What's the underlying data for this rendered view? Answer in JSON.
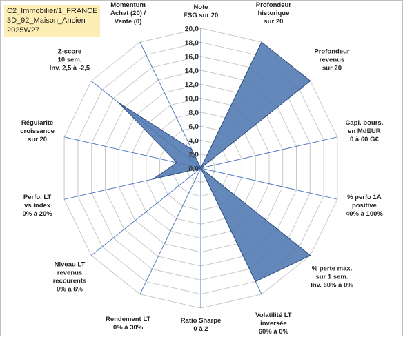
{
  "title_lines": [
    "C2_Immobilier/1_FRANCE",
    "3D_92_Maison_Ancien",
    "2025W27"
  ],
  "colors": {
    "area_fill": "#4a73ae",
    "area_stroke": "#2f4f7f",
    "grid": "#c8c8c8",
    "spoke": "#4f7ac0",
    "title_bg": "#fdeeb6"
  },
  "chart_data": {
    "type": "radar",
    "rmin": 0,
    "rmax": 20,
    "tick_step": 2,
    "tick_labels": [
      "0,0",
      "2,0",
      "4,0",
      "6,0",
      "8,0",
      "10,0",
      "12,0",
      "14,0",
      "16,0",
      "18,0",
      "20,0"
    ],
    "grid": true,
    "axes": [
      {
        "label": [
          "Note",
          "ESG sur 20"
        ],
        "value": 0
      },
      {
        "label": [
          "Profondeur",
          "historique",
          "sur 20"
        ],
        "value": 20
      },
      {
        "label": [
          "Profondeur",
          "revenus",
          "sur 20"
        ],
        "value": 20
      },
      {
        "label": [
          "Capi. bours.",
          "en MdEUR",
          "0 à 60 G€"
        ],
        "value": 0
      },
      {
        "label": [
          "% perfo 1A",
          "positive",
          "40% à 100%"
        ],
        "value": 0
      },
      {
        "label": [
          "% perte max.",
          "sur 1 sem.",
          "Inv. 60% à 0%"
        ],
        "value": 20
      },
      {
        "label": [
          "Volatilité LT",
          "inversée",
          "60% à 0%"
        ],
        "value": 18
      },
      {
        "label": [
          "Ratio Sharpe",
          "0 à 2"
        ],
        "value": 0
      },
      {
        "label": [
          "Rendement LT",
          "0% à 30%"
        ],
        "value": 0
      },
      {
        "label": [
          "Niveau LT",
          "revenus",
          "reccurents",
          "0% à 6%"
        ],
        "value": 0
      },
      {
        "label": [
          "Perfo. LT",
          "vs index",
          "0% à 20%"
        ],
        "value": 7
      },
      {
        "label": [
          "Régularité",
          "croissance",
          "sur 20"
        ],
        "value": 3.5
      },
      {
        "label": [
          "Z-score",
          "10 sem.",
          "Inv. 2,5 à -2,5"
        ],
        "value": 15
      },
      {
        "label": [
          "Momentum",
          "Achat (20) /",
          "Vente (0)"
        ],
        "value": 3
      }
    ]
  }
}
